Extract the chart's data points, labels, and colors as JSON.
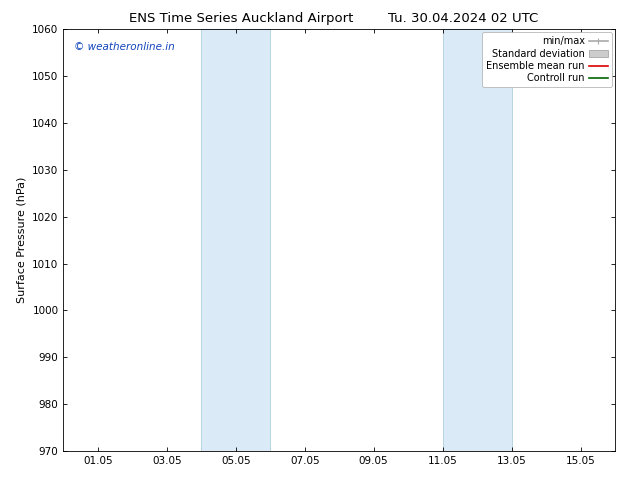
{
  "title": "ENS Time Series Auckland Airport",
  "title2": "Tu. 30.04.2024 02 UTC",
  "ylabel": "Surface Pressure (hPa)",
  "ylim": [
    970,
    1060
  ],
  "yticks": [
    970,
    980,
    990,
    1000,
    1010,
    1020,
    1030,
    1040,
    1050,
    1060
  ],
  "xlim_start": 0.0,
  "xlim_end": 16.0,
  "xtick_labels": [
    "01.05",
    "03.05",
    "05.05",
    "07.05",
    "09.05",
    "11.05",
    "13.05",
    "15.05"
  ],
  "xtick_positions": [
    1,
    3,
    5,
    7,
    9,
    11,
    13,
    15
  ],
  "shaded_bands": [
    {
      "x_start": 4.0,
      "x_end": 6.0
    },
    {
      "x_start": 11.0,
      "x_end": 13.0
    }
  ],
  "shaded_color": "#daeaf7",
  "shaded_edge_color": "#b0cfe0",
  "bg_color": "#ffffff",
  "watermark_text": "© weatheronline.in",
  "watermark_color": "#1144bb",
  "legend_items": [
    {
      "label": "min/max",
      "color": "#aaaaaa",
      "lw": 1.2
    },
    {
      "label": "Standard deviation",
      "color": "#cccccc",
      "lw": 5
    },
    {
      "label": "Ensemble mean run",
      "color": "#dd0000",
      "lw": 1.2
    },
    {
      "label": "Controll run",
      "color": "#006600",
      "lw": 1.2
    }
  ],
  "title_fontsize": 9.5,
  "ylabel_fontsize": 8,
  "tick_fontsize": 7.5,
  "watermark_fontsize": 7.5,
  "legend_fontsize": 7
}
